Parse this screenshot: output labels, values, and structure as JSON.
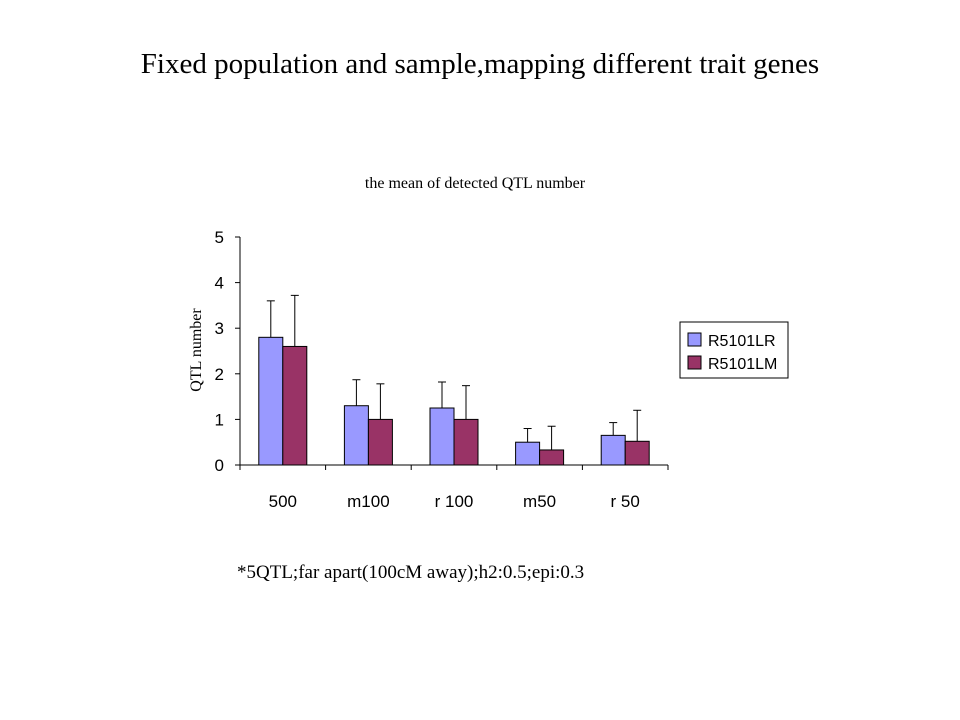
{
  "slide": {
    "title": "Fixed population and sample,mapping  different trait genes",
    "footnote": "*5QTL;far apart(100cM away);h2:0.5;epi:0.3"
  },
  "chart_data": {
    "type": "bar",
    "title": "the mean of  detected QTL number",
    "xlabel": "",
    "ylabel": "QTL number",
    "categories": [
      "500",
      "m100",
      "r 100",
      "m50",
      "r 50"
    ],
    "ylim": [
      0,
      5
    ],
    "yticks": [
      "0",
      "1",
      "2",
      "3",
      "4",
      "5"
    ],
    "series": [
      {
        "name": "R5101LR",
        "color": "#9999ff",
        "values": [
          2.8,
          1.3,
          1.25,
          0.5,
          0.65
        ],
        "error_upper": [
          3.6,
          1.87,
          1.82,
          0.8,
          0.93
        ]
      },
      {
        "name": "R5101LM",
        "color": "#993366",
        "values": [
          2.6,
          1.0,
          1.0,
          0.33,
          0.52
        ],
        "error_upper": [
          3.72,
          1.78,
          1.74,
          0.85,
          1.2
        ]
      }
    ],
    "legend_position": "right",
    "grid": false
  }
}
